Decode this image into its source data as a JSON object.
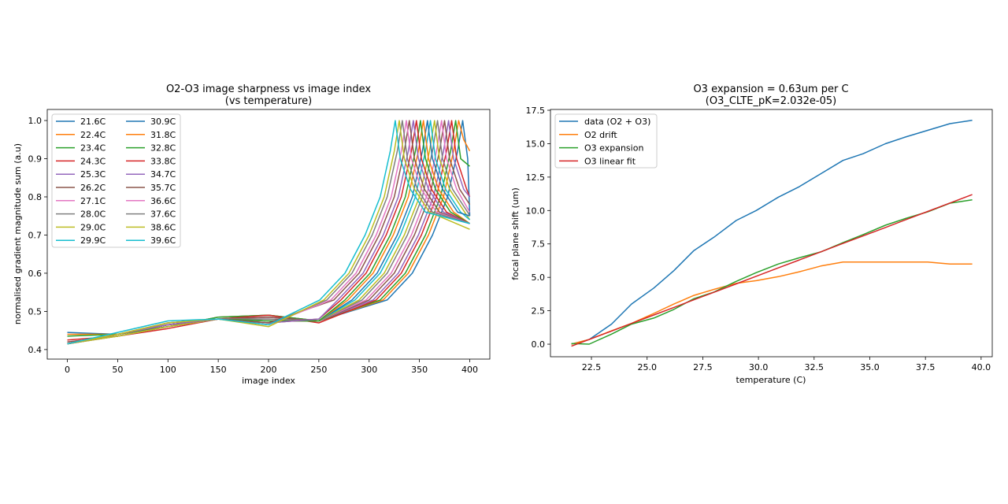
{
  "palette": [
    "#1f77b4",
    "#ff7f0e",
    "#2ca02c",
    "#d62728",
    "#9467bd",
    "#8c564b",
    "#e377c2",
    "#7f7f7f",
    "#bcbd22",
    "#17becf"
  ],
  "chart_data": [
    {
      "type": "line",
      "title": "O2-O3 image sharpness vs image index",
      "subtitle": "(vs temperature)",
      "xlabel": "image index",
      "ylabel": "normalised gradient magnitude sum (a.u)",
      "xlim": [
        -20,
        420
      ],
      "ylim": [
        0.375,
        1.029
      ],
      "xticks": [
        0,
        50,
        100,
        150,
        200,
        250,
        300,
        350,
        400
      ],
      "yticks": [
        0.4,
        0.5,
        0.6,
        0.7,
        0.8,
        0.9,
        1.0
      ],
      "grid": false,
      "legend": "top-left",
      "legend_columns": 2,
      "series": [
        {
          "name": "21.6C",
          "x": [
            0,
            50,
            100,
            150,
            200,
            250,
            318,
            343,
            363,
            378,
            388,
            393,
            398,
            400
          ],
          "y": [
            0.445,
            0.44,
            0.46,
            0.485,
            0.49,
            0.475,
            0.53,
            0.6,
            0.7,
            0.8,
            0.92,
            1.0,
            0.9,
            0.75
          ]
        },
        {
          "name": "22.4C",
          "x": [
            0,
            50,
            100,
            150,
            200,
            250,
            314,
            339,
            359,
            374,
            384,
            389,
            394,
            400
          ],
          "y": [
            0.44,
            0.44,
            0.46,
            0.485,
            0.49,
            0.475,
            0.53,
            0.6,
            0.7,
            0.8,
            0.92,
            1.0,
            0.95,
            0.92
          ]
        },
        {
          "name": "23.4C",
          "x": [
            0,
            50,
            100,
            150,
            200,
            250,
            311,
            336,
            356,
            371,
            381,
            386,
            391,
            400
          ],
          "y": [
            0.435,
            0.44,
            0.46,
            0.485,
            0.49,
            0.475,
            0.53,
            0.6,
            0.7,
            0.8,
            0.92,
            1.0,
            0.9,
            0.88
          ]
        },
        {
          "name": "24.3C",
          "x": [
            0,
            50,
            100,
            150,
            200,
            250,
            307,
            332,
            352,
            367,
            377,
            382,
            387,
            397,
            400
          ],
          "y": [
            0.425,
            0.435,
            0.455,
            0.48,
            0.49,
            0.47,
            0.53,
            0.6,
            0.7,
            0.8,
            0.92,
            1.0,
            0.9,
            0.82,
            0.8
          ]
        },
        {
          "name": "25.3C",
          "x": [
            0,
            50,
            100,
            150,
            200,
            250,
            304,
            329,
            349,
            364,
            374,
            379,
            384,
            394,
            400
          ],
          "y": [
            0.42,
            0.435,
            0.46,
            0.48,
            0.485,
            0.475,
            0.53,
            0.6,
            0.7,
            0.8,
            0.92,
            1.0,
            0.9,
            0.82,
            0.8
          ]
        },
        {
          "name": "26.2C",
          "x": [
            0,
            50,
            100,
            150,
            200,
            250,
            300,
            325,
            345,
            360,
            370,
            375,
            380,
            390,
            400
          ],
          "y": [
            0.42,
            0.435,
            0.46,
            0.48,
            0.485,
            0.475,
            0.53,
            0.6,
            0.7,
            0.8,
            0.92,
            1.0,
            0.9,
            0.82,
            0.78
          ]
        },
        {
          "name": "27.1C",
          "x": [
            0,
            50,
            100,
            150,
            200,
            250,
            297,
            322,
            342,
            357,
            367,
            372,
            377,
            387,
            400
          ],
          "y": [
            0.415,
            0.435,
            0.46,
            0.48,
            0.48,
            0.475,
            0.53,
            0.6,
            0.7,
            0.8,
            0.92,
            1.0,
            0.9,
            0.82,
            0.76
          ]
        },
        {
          "name": "28.0C",
          "x": [
            0,
            50,
            100,
            150,
            200,
            250,
            293,
            318,
            338,
            353,
            363,
            368,
            373,
            383,
            398,
            400
          ],
          "y": [
            0.415,
            0.435,
            0.46,
            0.48,
            0.48,
            0.475,
            0.53,
            0.6,
            0.7,
            0.8,
            0.92,
            1.0,
            0.9,
            0.82,
            0.76,
            0.75
          ]
        },
        {
          "name": "29.0C",
          "x": [
            0,
            50,
            100,
            150,
            200,
            250,
            290,
            315,
            335,
            350,
            360,
            365,
            370,
            380,
            395,
            400
          ],
          "y": [
            0.415,
            0.435,
            0.46,
            0.48,
            0.475,
            0.475,
            0.53,
            0.6,
            0.7,
            0.8,
            0.92,
            1.0,
            0.9,
            0.82,
            0.76,
            0.74
          ]
        },
        {
          "name": "29.9C",
          "x": [
            0,
            50,
            100,
            150,
            200,
            250,
            286,
            311,
            331,
            346,
            356,
            361,
            366,
            376,
            391,
            400
          ],
          "y": [
            0.415,
            0.44,
            0.465,
            0.48,
            0.475,
            0.475,
            0.53,
            0.6,
            0.7,
            0.8,
            0.92,
            1.0,
            0.9,
            0.82,
            0.76,
            0.74
          ]
        },
        {
          "name": "30.9C",
          "x": [
            0,
            50,
            100,
            150,
            200,
            250,
            283,
            308,
            328,
            343,
            353,
            358,
            363,
            373,
            388,
            400
          ],
          "y": [
            0.415,
            0.44,
            0.465,
            0.48,
            0.475,
            0.475,
            0.53,
            0.6,
            0.7,
            0.8,
            0.92,
            1.0,
            0.9,
            0.82,
            0.76,
            0.75
          ]
        },
        {
          "name": "31.8C",
          "x": [
            0,
            50,
            100,
            150,
            200,
            250,
            279,
            304,
            324,
            339,
            349,
            354,
            359,
            369,
            384,
            400
          ],
          "y": [
            0.415,
            0.44,
            0.465,
            0.48,
            0.475,
            0.475,
            0.53,
            0.6,
            0.7,
            0.8,
            0.92,
            1.0,
            0.9,
            0.82,
            0.76,
            0.73
          ]
        },
        {
          "name": "32.8C",
          "x": [
            0,
            50,
            100,
            150,
            200,
            250,
            276,
            301,
            321,
            336,
            346,
            351,
            356,
            366,
            381,
            400
          ],
          "y": [
            0.415,
            0.44,
            0.465,
            0.48,
            0.475,
            0.475,
            0.53,
            0.6,
            0.7,
            0.8,
            0.92,
            1.0,
            0.9,
            0.82,
            0.76,
            0.73
          ]
        },
        {
          "name": "33.8C",
          "x": [
            0,
            50,
            100,
            150,
            200,
            250,
            272,
            297,
            317,
            332,
            342,
            347,
            352,
            362,
            377,
            400
          ],
          "y": [
            0.415,
            0.44,
            0.465,
            0.48,
            0.47,
            0.48,
            0.53,
            0.6,
            0.7,
            0.8,
            0.92,
            1.0,
            0.9,
            0.82,
            0.76,
            0.73
          ]
        },
        {
          "name": "34.7C",
          "x": [
            0,
            50,
            100,
            150,
            200,
            250,
            269,
            294,
            314,
            329,
            339,
            344,
            349,
            359,
            374,
            400
          ],
          "y": [
            0.415,
            0.44,
            0.465,
            0.48,
            0.47,
            0.48,
            0.53,
            0.6,
            0.7,
            0.8,
            0.92,
            1.0,
            0.9,
            0.82,
            0.76,
            0.73
          ]
        },
        {
          "name": "35.7C",
          "x": [
            0,
            50,
            100,
            150,
            200,
            265,
            290,
            310,
            325,
            335,
            340,
            345,
            355,
            370,
            400
          ],
          "y": [
            0.415,
            0.44,
            0.47,
            0.48,
            0.47,
            0.53,
            0.6,
            0.7,
            0.8,
            0.92,
            1.0,
            0.9,
            0.82,
            0.76,
            0.73
          ]
        },
        {
          "name": "36.6C",
          "x": [
            0,
            50,
            100,
            150,
            200,
            262,
            287,
            307,
            322,
            332,
            337,
            342,
            352,
            367,
            400
          ],
          "y": [
            0.415,
            0.44,
            0.47,
            0.48,
            0.465,
            0.53,
            0.6,
            0.7,
            0.8,
            0.92,
            1.0,
            0.9,
            0.82,
            0.76,
            0.73
          ]
        },
        {
          "name": "37.6C",
          "x": [
            0,
            50,
            100,
            150,
            200,
            258,
            283,
            303,
            318,
            328,
            333,
            338,
            348,
            363,
            400
          ],
          "y": [
            0.415,
            0.44,
            0.47,
            0.48,
            0.465,
            0.53,
            0.6,
            0.7,
            0.8,
            0.92,
            1.0,
            0.9,
            0.82,
            0.76,
            0.73
          ]
        },
        {
          "name": "38.6C",
          "x": [
            0,
            50,
            100,
            150,
            200,
            255,
            280,
            300,
            315,
            325,
            330,
            335,
            345,
            360,
            400
          ],
          "y": [
            0.415,
            0.44,
            0.47,
            0.48,
            0.46,
            0.53,
            0.6,
            0.7,
            0.8,
            0.92,
            1.0,
            0.9,
            0.82,
            0.76,
            0.715
          ]
        },
        {
          "name": "39.6C",
          "x": [
            0,
            50,
            100,
            150,
            200,
            251,
            276,
            296,
            311,
            321,
            326,
            331,
            341,
            356,
            400
          ],
          "y": [
            0.415,
            0.445,
            0.475,
            0.48,
            0.465,
            0.53,
            0.6,
            0.7,
            0.8,
            0.92,
            1.0,
            0.9,
            0.82,
            0.76,
            0.73
          ]
        }
      ]
    },
    {
      "type": "line",
      "title": "O3 expansion = 0.63um per C",
      "subtitle": "(O3_CLTE_pK=2.032e-05)",
      "xlabel": "temperature (C)",
      "ylabel": "focal plane shift (um)",
      "xlim": [
        20.66,
        40.5
      ],
      "ylim": [
        -0.94,
        17.56
      ],
      "xticks": [
        22.5,
        25.0,
        27.5,
        30.0,
        32.5,
        35.0,
        37.5,
        40.0
      ],
      "yticks": [
        0.0,
        2.5,
        5.0,
        7.5,
        10.0,
        12.5,
        15.0,
        17.5
      ],
      "grid": false,
      "legend": "top-left",
      "x": [
        21.6,
        22.4,
        23.4,
        24.3,
        25.3,
        26.2,
        27.1,
        28.0,
        29.0,
        29.9,
        30.9,
        31.8,
        32.8,
        33.8,
        34.7,
        35.7,
        36.6,
        37.6,
        38.6,
        39.6
      ],
      "series": [
        {
          "name": "data (O2 + O3)",
          "y": [
            0.0,
            0.35,
            1.5,
            3.0,
            4.2,
            5.5,
            7.0,
            8.0,
            9.25,
            10.0,
            11.0,
            11.75,
            12.75,
            13.75,
            14.25,
            15.0,
            15.5,
            16.0,
            16.5,
            16.75
          ]
        },
        {
          "name": "O2 drift",
          "y": [
            0.0,
            0.35,
            1.0,
            1.55,
            2.3,
            3.0,
            3.65,
            4.1,
            4.55,
            4.75,
            5.05,
            5.4,
            5.85,
            6.15,
            6.15,
            6.15,
            6.15,
            6.15,
            6.0,
            6.0
          ]
        },
        {
          "name": "O3 expansion",
          "y": [
            0.05,
            0.0,
            0.75,
            1.5,
            1.95,
            2.6,
            3.4,
            3.9,
            4.7,
            5.35,
            6.0,
            6.45,
            6.9,
            7.6,
            8.2,
            8.9,
            9.4,
            9.9,
            10.55,
            10.8
          ]
        },
        {
          "name": "O3 linear fit",
          "y": [
            -0.15,
            0.35,
            0.98,
            1.55,
            2.18,
            2.75,
            3.32,
            3.88,
            4.51,
            5.08,
            5.71,
            6.28,
            6.91,
            7.54,
            8.1,
            8.73,
            9.3,
            9.93,
            10.56,
            11.19
          ]
        }
      ]
    }
  ]
}
